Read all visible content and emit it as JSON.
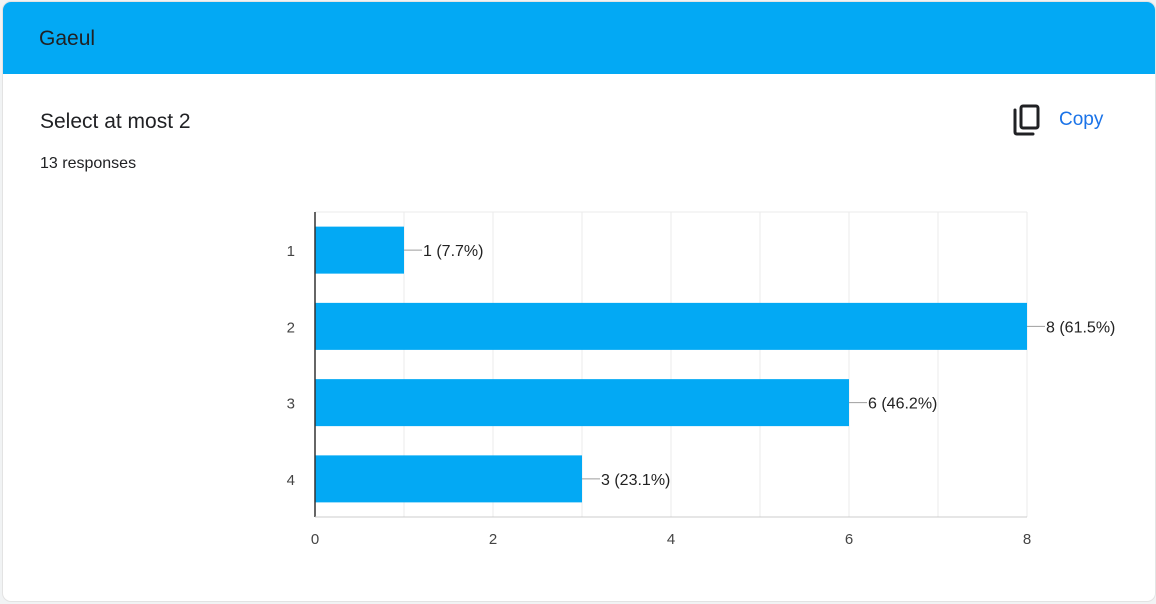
{
  "header": {
    "title": "Gaeul"
  },
  "question": {
    "title": "Select at most 2",
    "responses": "13 responses"
  },
  "copy_button": {
    "label": "Copy",
    "icon": "copy-icon"
  },
  "colors": {
    "header": "#03a9f4",
    "bar": "#03a9f4",
    "accent": "#1a73e8"
  },
  "chart_data": {
    "type": "bar",
    "orientation": "horizontal",
    "categories": [
      "1",
      "2",
      "3",
      "4"
    ],
    "values": [
      1,
      8,
      6,
      3
    ],
    "labels": [
      "1 (7.7%)",
      "8 (61.5%)",
      "6 (46.2%)",
      "3 (23.1%)"
    ],
    "xlim": [
      0,
      8
    ],
    "xticks": [
      "0",
      "2",
      "4",
      "6",
      "8"
    ],
    "grid": true
  }
}
